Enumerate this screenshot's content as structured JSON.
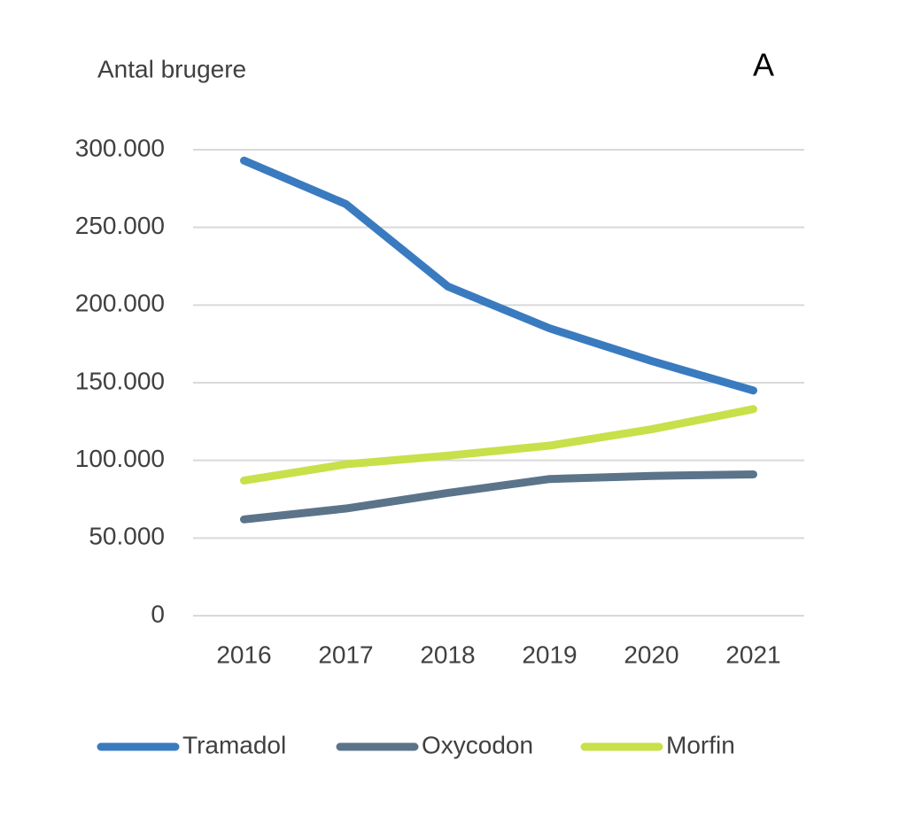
{
  "chart_data": {
    "type": "line",
    "y_label": "Antal brugere",
    "annotation": "A",
    "categories": [
      "2016",
      "2017",
      "2018",
      "2019",
      "2020",
      "2021"
    ],
    "series": [
      {
        "name": "Tramadol",
        "color": "#3a7bc0",
        "values": [
          293000,
          265000,
          212000,
          185000,
          164000,
          145000
        ]
      },
      {
        "name": "Oxycodon",
        "color": "#5b7489",
        "values": [
          62000,
          69000,
          79000,
          88000,
          90000,
          91000
        ]
      },
      {
        "name": "Morfin",
        "color": "#c8e04a",
        "values": [
          87000,
          97500,
          103000,
          109500,
          120000,
          133000
        ]
      }
    ],
    "ylim": [
      0,
      300000
    ],
    "yticks": [
      0,
      {
        "value": 50000,
        "label": "50.000"
      },
      {
        "value": 100000,
        "label": "100.000"
      },
      {
        "value": 150000,
        "label": "150.000"
      },
      {
        "value": 200000,
        "label": "200.000"
      },
      {
        "value": 250000,
        "label": "250.000"
      },
      {
        "value": 300000,
        "label": "300.000"
      }
    ],
    "grid": true
  }
}
